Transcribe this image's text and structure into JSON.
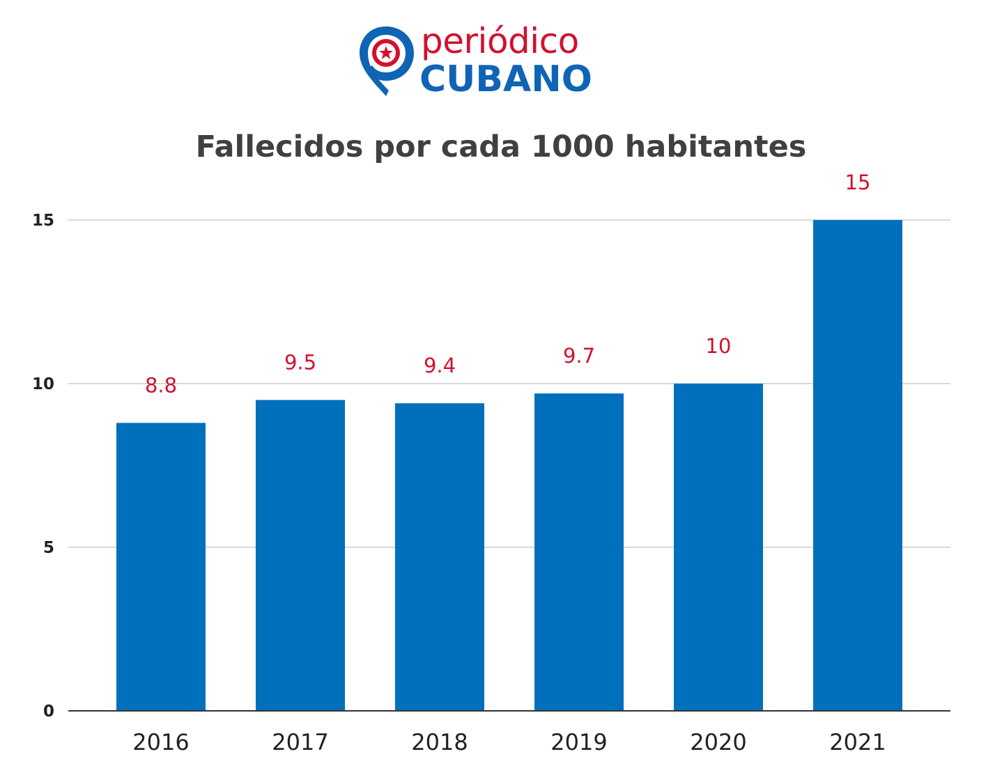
{
  "logo": {
    "line1": "periódico",
    "line2": "CUBANO"
  },
  "colors": {
    "bar": "#0070bc",
    "label": "#d3102f",
    "grid": "#cccccc",
    "axis": "#333333",
    "title": "#404040",
    "brand_blue": "#1064b4",
    "brand_red": "#d3102f"
  },
  "chart_data": {
    "type": "bar",
    "title": "Fallecidos por cada 1000 habitantes",
    "categories": [
      "2016",
      "2017",
      "2018",
      "2019",
      "2020",
      "2021"
    ],
    "values": [
      8.8,
      9.5,
      9.4,
      9.7,
      10,
      15
    ],
    "data_labels": [
      "8.8",
      "9.5",
      "9.4",
      "9.7",
      "10",
      "15"
    ],
    "yticks": [
      0,
      5,
      10,
      15
    ],
    "ylim": [
      0,
      15
    ],
    "grid": true,
    "legend": "none"
  }
}
